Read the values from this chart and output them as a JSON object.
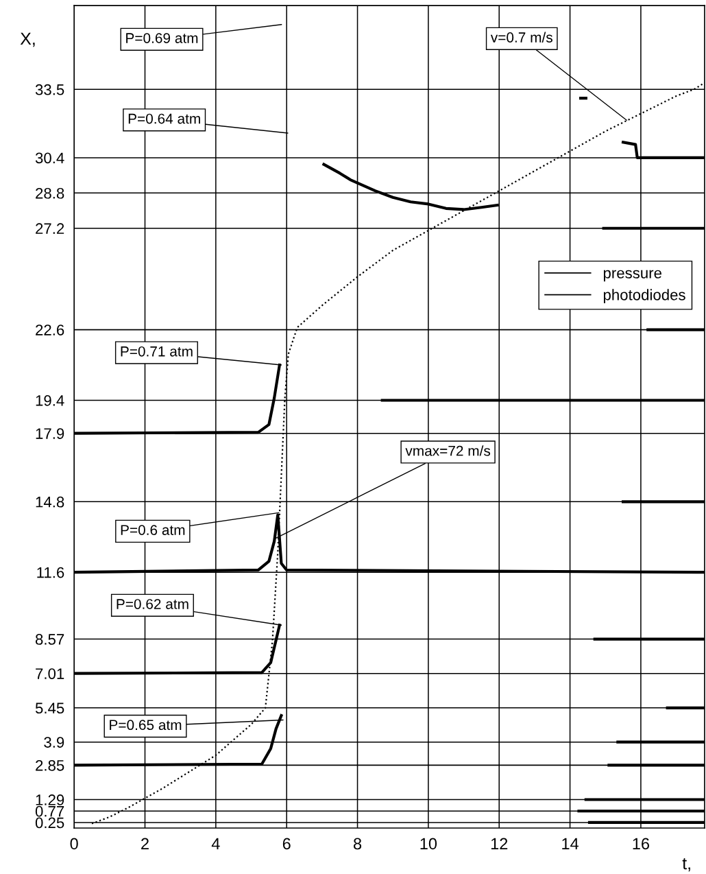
{
  "chart_data": {
    "type": "line",
    "xlabel": "t,",
    "ylabel": "X,",
    "xlim": [
      0,
      17.8
    ],
    "xticks": [
      0,
      2,
      4,
      6,
      8,
      10,
      12,
      14,
      16
    ],
    "ylim": [
      0,
      37.3
    ],
    "yticks": [
      0.25,
      0.77,
      1.29,
      2.85,
      3.9,
      5.45,
      7.01,
      8.57,
      11.6,
      14.8,
      17.9,
      19.4,
      22.6,
      27.2,
      28.8,
      30.4,
      33.5
    ],
    "grid": true,
    "legend": "right",
    "marker": "none",
    "series": [
      {
        "name": "pressure",
        "color": "#000000",
        "line_style": "solid",
        "x": [
          0,
          5.2,
          5.5,
          5.65,
          5.8,
          null,
          0,
          5.2,
          5.5,
          5.65,
          5.75,
          5.85,
          6.0,
          17.8,
          null,
          0,
          5.3,
          5.55,
          5.8,
          null,
          0,
          5.3,
          5.55,
          5.7,
          5.85,
          null,
          7.05,
          7.5,
          7.8,
          8.5,
          9,
          9.5,
          10,
          10.5,
          11,
          11.5,
          11.95
        ],
        "values": [
          17.9,
          17.95,
          18.3,
          19.5,
          21.0,
          null,
          11.6,
          11.7,
          12.1,
          13.0,
          14.2,
          12.0,
          11.7,
          11.6,
          null,
          7.01,
          7.05,
          7.5,
          9.2,
          null,
          2.85,
          2.9,
          3.6,
          4.5,
          5.1,
          null,
          30.1,
          29.7,
          29.4,
          28.9,
          28.6,
          28.4,
          28.3,
          28.1,
          28.05,
          28.15,
          28.25
        ]
      },
      {
        "name": "photodiodes",
        "color": "#000000",
        "line_style": "solid",
        "x": [
          15.5,
          15.85,
          15.9,
          17.8,
          null,
          14.95,
          17.8,
          null,
          16.2,
          17.8,
          null,
          8.7,
          17.8,
          null,
          15.5,
          17.8,
          null,
          14.7,
          17.8,
          null,
          16.75,
          17.8,
          null,
          15.35,
          17.8,
          null,
          15.1,
          17.8,
          null,
          14.45,
          17.8,
          null,
          14.25,
          17.8,
          null,
          14.55,
          17.8,
          null,
          14.3,
          14.45
        ],
        "values": [
          31.1,
          31.0,
          30.4,
          30.4,
          null,
          27.2,
          27.2,
          null,
          22.6,
          22.6,
          null,
          19.4,
          19.4,
          null,
          14.8,
          14.8,
          null,
          8.57,
          8.57,
          null,
          5.45,
          5.45,
          null,
          3.9,
          3.9,
          null,
          2.85,
          2.85,
          null,
          1.29,
          1.29,
          null,
          0.77,
          0.77,
          null,
          0.25,
          0.25,
          null,
          33.1,
          33.1
        ]
      },
      {
        "color": "#000000",
        "line_style": "dotted",
        "x": [
          0.5,
          1,
          1.5,
          2,
          2.5,
          3,
          3.5,
          4,
          4.5,
          5,
          5.4,
          5.6,
          5.75,
          5.85,
          5.95,
          6.05,
          6.3,
          7,
          8,
          9,
          10,
          11,
          12,
          13,
          14,
          15,
          16,
          17,
          17.5,
          17.8
        ],
        "values": [
          0.2,
          0.5,
          0.9,
          1.35,
          1.8,
          2.3,
          2.8,
          3.3,
          4.0,
          4.7,
          5.45,
          8.5,
          12.5,
          16,
          19.5,
          21.5,
          22.7,
          23.7,
          25.0,
          26.2,
          27.1,
          28.0,
          28.9,
          29.8,
          30.7,
          31.6,
          32.4,
          33.2,
          33.5,
          33.8
        ]
      }
    ],
    "annotations": [
      "P=0.69 atm",
      "P=0.64 atm",
      {
        "text": "v=0.7 m/s",
        "x": 15.6,
        "y": 32.1
      },
      {
        "text": "P=0.71 atm",
        "x": 5.85,
        "y": 21.0
      },
      {
        "text": "vmax=72 m/s",
        "x": 5.64,
        "y": 13.1
      },
      {
        "text": "P=0.6 atm",
        "x": 5.78,
        "y": 14.3
      },
      {
        "text": "P=0.62 atm",
        "x": 5.85,
        "y": 9.2
      },
      {
        "text": "P=0.65 atm",
        "x": 5.9,
        "y": 4.9
      }
    ]
  }
}
